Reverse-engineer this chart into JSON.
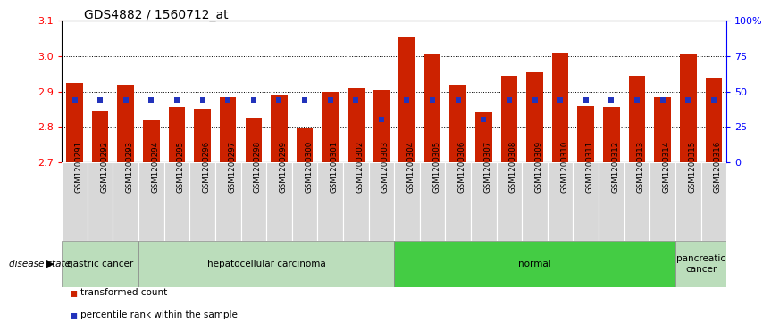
{
  "title": "GDS4882 / 1560712_at",
  "samples": [
    "GSM1200291",
    "GSM1200292",
    "GSM1200293",
    "GSM1200294",
    "GSM1200295",
    "GSM1200296",
    "GSM1200297",
    "GSM1200298",
    "GSM1200299",
    "GSM1200300",
    "GSM1200301",
    "GSM1200302",
    "GSM1200303",
    "GSM1200304",
    "GSM1200305",
    "GSM1200306",
    "GSM1200307",
    "GSM1200308",
    "GSM1200309",
    "GSM1200310",
    "GSM1200311",
    "GSM1200312",
    "GSM1200313",
    "GSM1200314",
    "GSM1200315",
    "GSM1200316"
  ],
  "bar_values": [
    2.925,
    2.845,
    2.92,
    2.82,
    2.855,
    2.85,
    2.885,
    2.825,
    2.89,
    2.795,
    2.9,
    2.91,
    2.905,
    3.055,
    3.005,
    2.92,
    2.84,
    2.945,
    2.955,
    3.01,
    2.86,
    2.855,
    2.945,
    2.885,
    3.005,
    2.94
  ],
  "percentile_values": [
    0.44,
    0.44,
    0.44,
    0.44,
    0.44,
    0.44,
    0.44,
    0.44,
    0.44,
    0.44,
    0.44,
    0.44,
    0.3,
    0.44,
    0.44,
    0.44,
    0.3,
    0.44,
    0.44,
    0.44,
    0.44,
    0.44,
    0.44,
    0.44,
    0.44,
    0.44
  ],
  "ymin": 2.7,
  "ymax": 3.1,
  "yticks": [
    2.7,
    2.8,
    2.9,
    3.0,
    3.1
  ],
  "bar_color": "#cc2200",
  "percentile_color": "#2233bb",
  "group_configs": [
    {
      "label": "gastric cancer",
      "start": 0,
      "end": 3,
      "color": "#bbddbb"
    },
    {
      "label": "hepatocellular carcinoma",
      "start": 3,
      "end": 13,
      "color": "#bbddbb"
    },
    {
      "label": "normal",
      "start": 13,
      "end": 24,
      "color": "#44cc44"
    },
    {
      "label": "pancreatic\ncancer",
      "start": 24,
      "end": 26,
      "color": "#bbddbb"
    }
  ],
  "legend_items": [
    {
      "color": "#cc2200",
      "label": "transformed count"
    },
    {
      "color": "#2233bb",
      "label": "percentile rank within the sample"
    }
  ],
  "right_yticks": [
    0,
    25,
    50,
    75,
    100
  ],
  "right_yticklabels": [
    "0",
    "25",
    "50",
    "75",
    "100%"
  ]
}
